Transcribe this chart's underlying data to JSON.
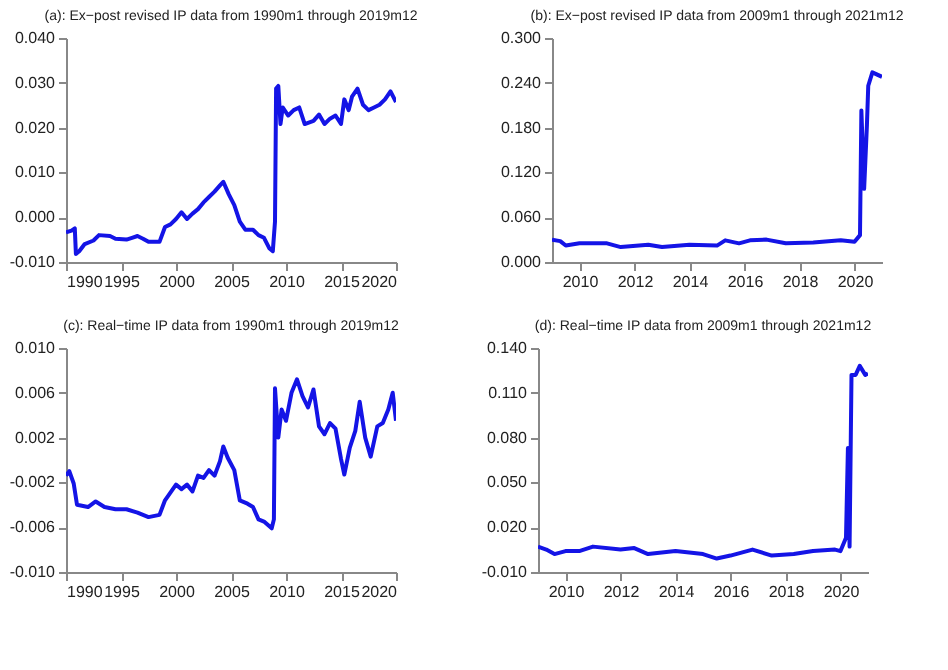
{
  "chart_data": [
    {
      "type": "line",
      "title": "(a): Ex−post revised IP data from 1990m1 through 2019m12",
      "xlim": [
        1990,
        2020
      ],
      "xticks": [
        1990,
        1995,
        2000,
        2005,
        2010,
        2015,
        2020
      ],
      "ylim": [
        -0.01,
        0.04
      ],
      "yticks": [
        {
          "value": -0.01,
          "label": "-0.010"
        },
        {
          "value": 0,
          "label": "0.000"
        },
        {
          "value": 0.01,
          "label": "0.010"
        },
        {
          "value": 0.02,
          "label": "0.020"
        },
        {
          "value": 0.03,
          "label": "0.030"
        },
        {
          "value": 0.04,
          "label": "0.040"
        }
      ],
      "series": [
        {
          "color": "#1414e6",
          "x": [
            1990,
            1990.5,
            1990.8,
            1990.9,
            1991.2,
            1991.7,
            1992.5,
            1993,
            1994,
            1994.5,
            1995.5,
            1996,
            1996.5,
            1997,
            1997.5,
            1998.5,
            1999,
            1999.5,
            2000,
            2000.5,
            2001,
            2001.5,
            2002,
            2002.5,
            2003,
            2003.5,
            2004,
            2004.3,
            2004.8,
            2005.3,
            2005.8,
            2006.3,
            2007,
            2007.5,
            2008,
            2008.5,
            2008.8,
            2009,
            2009.1,
            2009.3,
            2009.5,
            2009.7,
            2010.2,
            2010.7,
            2011.2,
            2011.7,
            2012.5,
            2013,
            2013.5,
            2014,
            2014.5,
            2015,
            2015.3,
            2015.7,
            2016,
            2016.5,
            2017,
            2017.5,
            2018,
            2018.5,
            2019,
            2019.5,
            2020
          ],
          "values": [
            -0.0034,
            -0.003,
            -0.0025,
            -0.0082,
            -0.0076,
            -0.006,
            -0.0052,
            -0.004,
            -0.0042,
            -0.0048,
            -0.005,
            -0.0046,
            -0.0042,
            -0.0048,
            -0.0055,
            -0.0055,
            -0.0022,
            -0.0016,
            -0.0004,
            0.0011,
            -0.0004,
            0.0008,
            0.0018,
            0.0033,
            0.0045,
            0.0057,
            0.0071,
            0.0079,
            0.0051,
            0.0027,
            -0.001,
            -0.0028,
            -0.0028,
            -0.004,
            -0.0046,
            -0.007,
            -0.0076,
            -0.001,
            0.0287,
            0.0293,
            0.0208,
            0.0245,
            0.0227,
            0.0239,
            0.0245,
            0.0208,
            0.0215,
            0.0229,
            0.0208,
            0.022,
            0.0227,
            0.0208,
            0.0263,
            0.0239,
            0.0269,
            0.0287,
            0.0251,
            0.0239,
            0.0245,
            0.0251,
            0.0263,
            0.0281,
            0.0257
          ]
        }
      ]
    },
    {
      "type": "line",
      "title": "(b): Ex−post revised IP data from 2009m1 through 2021m12",
      "xlim": [
        2009,
        2021
      ],
      "xticks": [
        2010,
        2012,
        2014,
        2016,
        2018,
        2020
      ],
      "ylim": [
        0,
        0.3
      ],
      "yticks": [
        {
          "value": 0,
          "label": "0.000"
        },
        {
          "value": 0.06,
          "label": "0.060"
        },
        {
          "value": 0.12,
          "label": "0.120"
        },
        {
          "value": 0.18,
          "label": "0.180"
        },
        {
          "value": 0.24,
          "label": "0.240"
        },
        {
          "value": 0.3,
          "label": "0.300"
        }
      ],
      "series": [
        {
          "color": "#1414e6",
          "x": [
            2009,
            2009.3,
            2009.5,
            2010,
            2011,
            2011.5,
            2012.5,
            2013,
            2014,
            2015,
            2015.3,
            2015.8,
            2016.2,
            2016.8,
            2017.5,
            2018.5,
            2019.5,
            2020,
            2020.2,
            2020.25,
            2020.35,
            2020.45,
            2020.5,
            2020.65,
            2021
          ],
          "values": [
            0.03,
            0.028,
            0.022,
            0.025,
            0.025,
            0.02,
            0.023,
            0.02,
            0.023,
            0.022,
            0.029,
            0.025,
            0.029,
            0.03,
            0.025,
            0.026,
            0.029,
            0.027,
            0.036,
            0.203,
            0.098,
            0.182,
            0.236,
            0.254,
            0.248
          ]
        }
      ]
    },
    {
      "type": "line",
      "title": "(c): Real−time IP data from 1990m1 through 2019m12",
      "xlim": [
        1990,
        2020
      ],
      "xticks": [
        1990,
        1995,
        2000,
        2005,
        2010,
        2015,
        2020
      ],
      "ylim": [
        -0.01,
        0.01
      ],
      "yticks": [
        {
          "value": -0.01,
          "label": "-0.010"
        },
        {
          "value": -0.006,
          "label": "-0.006"
        },
        {
          "value": -0.002,
          "label": "-0.002"
        },
        {
          "value": 0.002,
          "label": "0.002"
        },
        {
          "value": 0.006,
          "label": "0.006"
        },
        {
          "value": 0.01,
          "label": "0.010"
        }
      ],
      "series": [
        {
          "color": "#1414e6",
          "x": [
            1990,
            1990.3,
            1990.7,
            1991,
            1992,
            1992.7,
            1993.5,
            1994.5,
            1995.5,
            1996.5,
            1997.5,
            1998.5,
            1999,
            2000,
            2000.5,
            2001,
            2001.5,
            2002,
            2002.5,
            2003,
            2003.5,
            2004,
            2004.3,
            2004.7,
            2005.3,
            2005.8,
            2006.5,
            2007,
            2007.5,
            2008,
            2008.7,
            2008.9,
            2009,
            2009.3,
            2009.6,
            2010,
            2010.5,
            2011,
            2011.5,
            2012,
            2012.5,
            2013,
            2013.5,
            2014,
            2014.5,
            2015,
            2015.3,
            2015.8,
            2016.3,
            2016.7,
            2017.2,
            2017.7,
            2018.3,
            2018.8,
            2019.3,
            2019.7,
            2020
          ],
          "values": [
            -0.0014,
            -0.001,
            -0.0021,
            -0.004,
            -0.0042,
            -0.0037,
            -0.0042,
            -0.0044,
            -0.0044,
            -0.0047,
            -0.0051,
            -0.0049,
            -0.0036,
            -0.0022,
            -0.0026,
            -0.0022,
            -0.0028,
            -0.0014,
            -0.0016,
            -0.0009,
            -0.0014,
            -0.0001,
            0.0012,
            0.0002,
            -0.0009,
            -0.0036,
            -0.0039,
            -0.0042,
            -0.0053,
            -0.0055,
            -0.0061,
            -0.0053,
            0.0064,
            0.002,
            0.0045,
            0.0035,
            0.006,
            0.0072,
            0.0057,
            0.0047,
            0.0063,
            0.003,
            0.0023,
            0.0033,
            0.0028,
            0.0001,
            -0.0013,
            0.0011,
            0.0026,
            0.0052,
            0.002,
            0.0003,
            0.003,
            0.0033,
            0.0045,
            0.006,
            0.0035
          ]
        }
      ]
    },
    {
      "type": "line",
      "title": "(d): Real−time IP data from 2009m1 through 2021m12",
      "xlim": [
        2009,
        2021
      ],
      "xticks": [
        2010,
        2012,
        2014,
        2016,
        2018,
        2020
      ],
      "ylim": [
        -0.01,
        0.14
      ],
      "yticks": [
        {
          "value": -0.01,
          "label": "-0.010"
        },
        {
          "value": 0.02,
          "label": "0.020"
        },
        {
          "value": 0.05,
          "label": "0.050"
        },
        {
          "value": 0.08,
          "label": "0.080"
        },
        {
          "value": 0.11,
          "label": "0.110"
        },
        {
          "value": 0.14,
          "label": "0.140"
        }
      ],
      "series": [
        {
          "color": "#1414e6",
          "x": [
            2009,
            2009.3,
            2009.6,
            2010,
            2010.5,
            2011,
            2012,
            2012.5,
            2013,
            2014,
            2015,
            2015.5,
            2016,
            2016.8,
            2017.5,
            2018.3,
            2019,
            2019.8,
            2020,
            2020.2,
            2020.27,
            2020.33,
            2020.4,
            2020.55,
            2020.7,
            2020.9,
            2021
          ],
          "values": [
            0.007,
            0.005,
            0.002,
            0.004,
            0.004,
            0.007,
            0.005,
            0.006,
            0.002,
            0.004,
            0.002,
            -0.001,
            0.001,
            0.005,
            0.001,
            0.002,
            0.004,
            0.005,
            0.004,
            0.013,
            0.073,
            0.007,
            0.122,
            0.122,
            0.128,
            0.122,
            0.123
          ]
        }
      ]
    }
  ]
}
